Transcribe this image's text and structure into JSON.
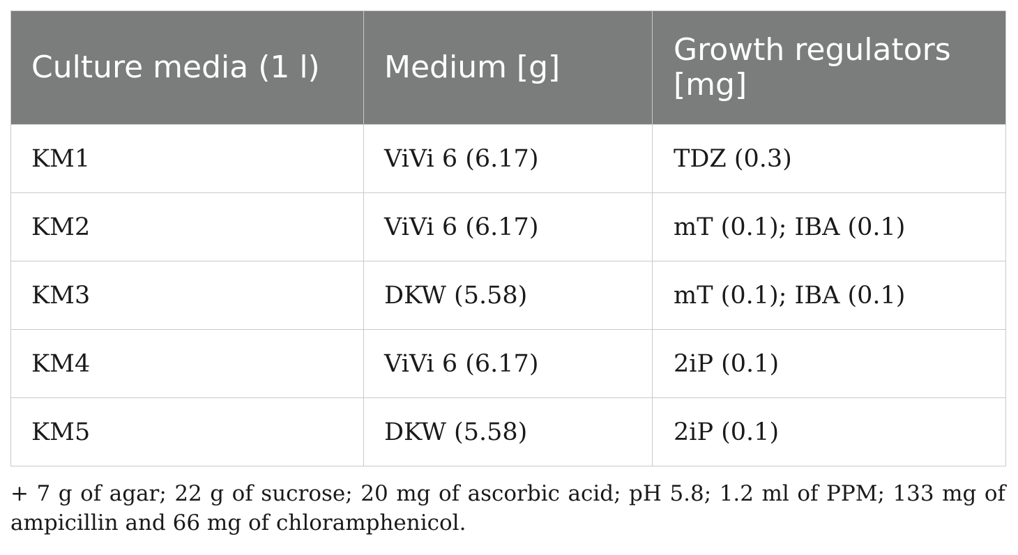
{
  "table": {
    "headers": [
      "Culture media (1 l)",
      "Medium [g]",
      "Growth regulators [mg]"
    ],
    "rows": [
      [
        "KM1",
        "ViVi 6 (6.17)",
        "TDZ (0.3)"
      ],
      [
        "KM2",
        "ViVi 6 (6.17)",
        "mT (0.1); IBA (0.1)"
      ],
      [
        "KM3",
        "DKW (5.58)",
        "mT (0.1); IBA (0.1)"
      ],
      [
        "KM4",
        "ViVi 6 (6.17)",
        "2iP (0.1)"
      ],
      [
        "KM5",
        "DKW (5.58)",
        "2iP (0.1)"
      ]
    ]
  },
  "footnote": "+ 7 g of agar; 22 g of sucrose; 20 mg of ascorbic acid; pH 5.8; 1.2 ml of PPM; 133 mg of ampicillin and 66 mg of chloramphenicol.",
  "colors": {
    "header_bg": "#7b7c7c",
    "header_text": "#ffffff",
    "grid_line": "#c9c9c9",
    "body_text": "#1a1a1a"
  }
}
